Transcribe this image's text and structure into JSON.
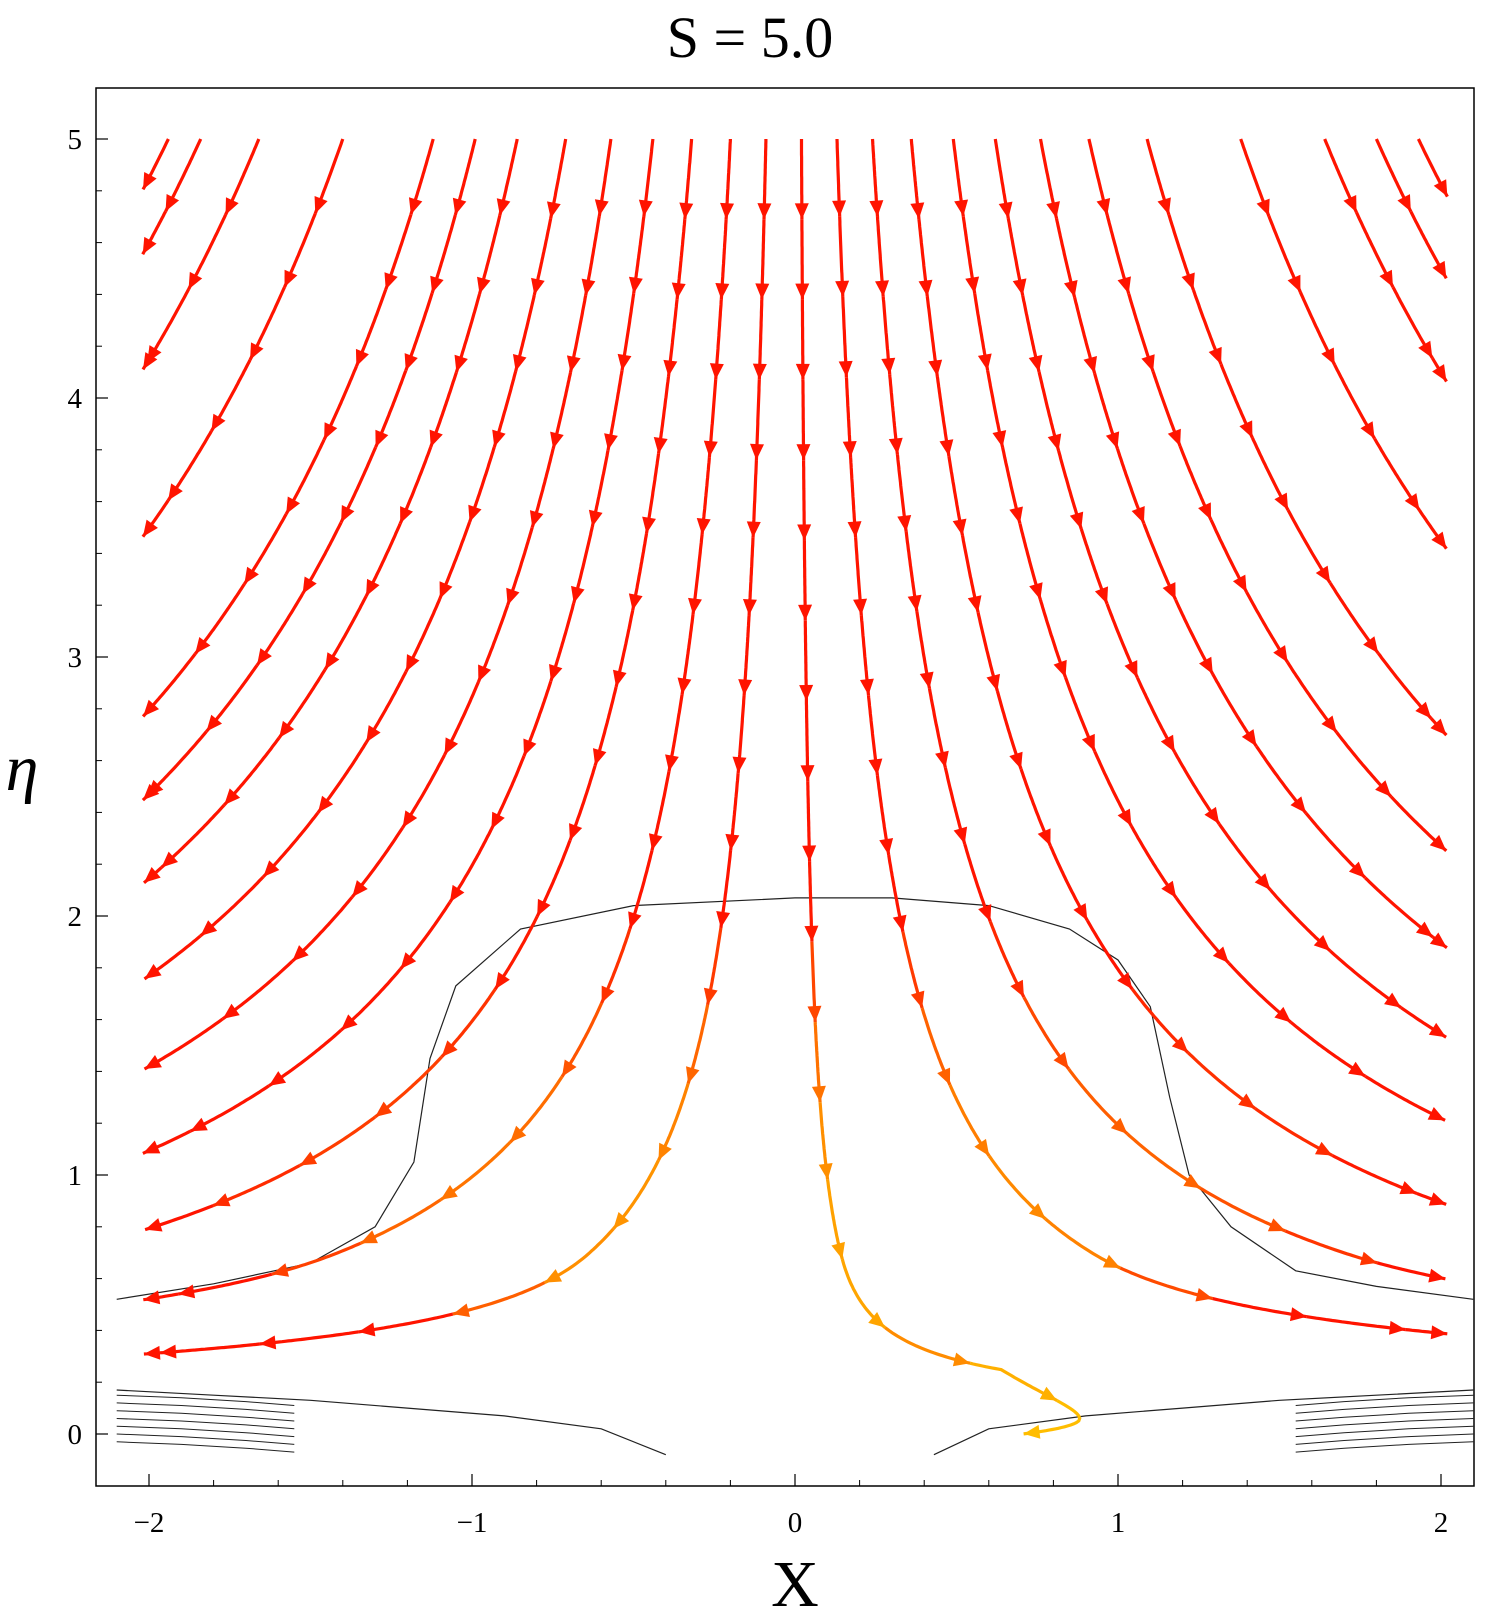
{
  "title": "S = 5.0",
  "chart_data": {
    "type": "streamline",
    "title": "S = 5.0",
    "xlabel": "X",
    "ylabel": "η",
    "xlim": [
      -2.2,
      2.1
    ],
    "ylim": [
      -0.2,
      5.2
    ],
    "x_ticks": [
      -2,
      -1,
      0,
      1,
      2
    ],
    "x_tick_labels": [
      "−2",
      "−1",
      "0",
      "1",
      "2"
    ],
    "y_ticks": [
      0,
      1,
      2,
      3,
      4,
      5
    ],
    "y_tick_labels": [
      "0",
      "1",
      "2",
      "3",
      "4",
      "5"
    ],
    "streamline_start_x": [
      -1.94,
      -1.84,
      -1.66,
      -1.4,
      -1.12,
      -0.99,
      -0.86,
      -0.71,
      -0.57,
      -0.44,
      -0.32,
      -0.2,
      -0.09,
      0.02,
      0.13,
      0.24,
      0.36,
      0.49,
      0.62,
      0.76,
      0.91,
      1.09,
      1.38,
      1.64,
      1.8,
      1.93
    ],
    "streamline_start_y": 5.0,
    "colormap": {
      "min_speed": "#ffff22",
      "mid_speed": "#ffcc00",
      "high_speed": "#ff9900",
      "max_speed": "#ff0000"
    },
    "contours": [
      {
        "name": "outer",
        "points": [
          [
            -2.1,
            0.52
          ],
          [
            -1.8,
            0.58
          ],
          [
            -1.5,
            0.66
          ],
          [
            -1.3,
            0.8
          ],
          [
            -1.18,
            1.05
          ],
          [
            -1.13,
            1.45
          ],
          [
            -1.05,
            1.73
          ],
          [
            -0.85,
            1.95
          ],
          [
            -0.5,
            2.04
          ],
          [
            0,
            2.07
          ],
          [
            0.3,
            2.07
          ],
          [
            0.6,
            2.04
          ],
          [
            0.85,
            1.95
          ],
          [
            1.0,
            1.83
          ],
          [
            1.1,
            1.65
          ],
          [
            1.16,
            1.3
          ],
          [
            1.22,
            1.0
          ],
          [
            1.35,
            0.8
          ],
          [
            1.55,
            0.63
          ],
          [
            1.8,
            0.57
          ],
          [
            2.1,
            0.52
          ]
        ]
      },
      {
        "name": "lower-1",
        "points": [
          [
            -2.1,
            0.17
          ],
          [
            -1.8,
            0.15
          ],
          [
            -1.5,
            0.13
          ],
          [
            -1.2,
            0.1
          ],
          [
            -0.9,
            0.07
          ],
          [
            -0.6,
            0.02
          ],
          [
            -0.4,
            -0.08
          ]
        ]
      },
      {
        "name": "lower-2",
        "points": [
          [
            0.43,
            -0.08
          ],
          [
            0.6,
            0.02
          ],
          [
            0.9,
            0.07
          ],
          [
            1.2,
            0.1
          ],
          [
            1.5,
            0.13
          ],
          [
            1.8,
            0.15
          ],
          [
            2.1,
            0.17
          ]
        ]
      }
    ]
  }
}
